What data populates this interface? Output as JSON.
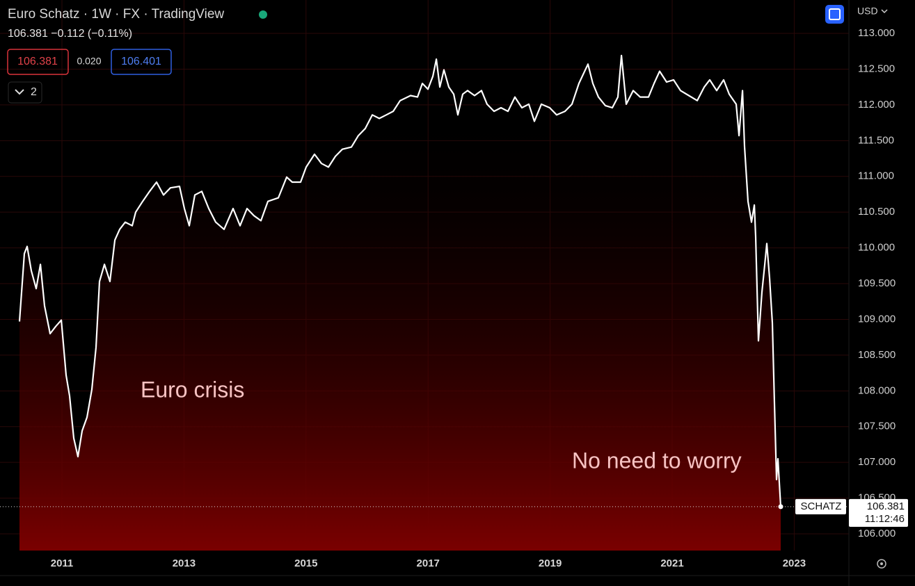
{
  "chart_data": {
    "type": "line",
    "title": "Euro Schatz · 1W · FX · TradingView",
    "subtitle": "106.381 −0.112 (−0.11%)",
    "header": {
      "bid": "106.381",
      "spread": "0.020",
      "ask": "106.401",
      "indicators": "2",
      "currency": "USD"
    },
    "annotations": [
      "Euro crisis",
      "No need to worry"
    ],
    "symbol_label": "SCHATZ",
    "countdown": "11:12:46",
    "x": [
      2010.304,
      2010.384,
      2010.43,
      2010.498,
      2010.578,
      2010.647,
      2010.715,
      2010.806,
      2010.897,
      2010.989,
      2011.068,
      2011.125,
      2011.194,
      2011.262,
      2011.331,
      2011.41,
      2011.49,
      2011.559,
      2011.616,
      2011.696,
      2011.787,
      2011.867,
      2011.946,
      2012.038,
      2012.152,
      2012.209,
      2012.323,
      2012.437,
      2012.551,
      2012.665,
      2012.779,
      2012.927,
      2013.007,
      2013.087,
      2013.178,
      2013.292,
      2013.406,
      2013.52,
      2013.657,
      2013.805,
      2013.919,
      2014.033,
      2014.147,
      2014.261,
      2014.375,
      2014.546,
      2014.683,
      2014.774,
      2014.911,
      2015.002,
      2015.139,
      2015.253,
      2015.367,
      2015.481,
      2015.595,
      2015.743,
      2015.857,
      2015.971,
      2016.086,
      2016.2,
      2016.314,
      2016.428,
      2016.542,
      2016.713,
      2016.827,
      2016.906,
      2016.998,
      2017.078,
      2017.135,
      2017.192,
      2017.26,
      2017.34,
      2017.42,
      2017.488,
      2017.568,
      2017.648,
      2017.762,
      2017.876,
      2017.967,
      2018.081,
      2018.195,
      2018.309,
      2018.423,
      2018.537,
      2018.651,
      2018.742,
      2018.856,
      2018.993,
      2019.107,
      2019.244,
      2019.358,
      2019.472,
      2019.62,
      2019.7,
      2019.791,
      2019.905,
      2020.019,
      2020.11,
      2020.168,
      2020.247,
      2020.361,
      2020.475,
      2020.612,
      2020.703,
      2020.795,
      2020.909,
      2021.023,
      2021.137,
      2021.274,
      2021.41,
      2021.525,
      2021.616,
      2021.73,
      2021.844,
      2021.935,
      2022.049,
      2022.095,
      2022.152,
      2022.186,
      2022.243,
      2022.3,
      2022.346,
      2022.368,
      2022.414,
      2022.471,
      2022.517,
      2022.551,
      2022.596,
      2022.642,
      2022.676,
      2022.71,
      2022.733,
      2022.779
    ],
    "series": [
      {
        "name": "Euro Schatz",
        "color": "#ffffff",
        "values": [
          108.97,
          109.92,
          110.02,
          109.68,
          109.43,
          109.77,
          109.19,
          108.8,
          108.9,
          108.99,
          108.22,
          107.93,
          107.34,
          107.08,
          107.44,
          107.63,
          108.02,
          108.61,
          109.53,
          109.77,
          109.53,
          110.11,
          110.26,
          110.36,
          110.31,
          110.5,
          110.65,
          110.79,
          110.92,
          110.74,
          110.84,
          110.86,
          110.55,
          110.31,
          110.74,
          110.79,
          110.55,
          110.36,
          110.26,
          110.55,
          110.31,
          110.55,
          110.45,
          110.38,
          110.65,
          110.7,
          110.99,
          110.92,
          110.92,
          111.13,
          111.31,
          111.18,
          111.13,
          111.28,
          111.38,
          111.41,
          111.57,
          111.67,
          111.86,
          111.81,
          111.86,
          111.91,
          112.06,
          112.13,
          112.11,
          112.3,
          112.22,
          112.4,
          112.64,
          112.25,
          112.49,
          112.25,
          112.15,
          111.86,
          112.15,
          112.2,
          112.13,
          112.2,
          112.01,
          111.91,
          111.96,
          111.91,
          112.11,
          111.96,
          112.01,
          111.77,
          112.01,
          111.96,
          111.86,
          111.91,
          112.01,
          112.3,
          112.57,
          112.3,
          112.11,
          111.99,
          111.96,
          112.11,
          112.69,
          112.01,
          112.2,
          112.11,
          112.11,
          112.3,
          112.47,
          112.32,
          112.35,
          112.2,
          112.13,
          112.06,
          112.25,
          112.35,
          112.2,
          112.35,
          112.15,
          112.01,
          111.57,
          112.2,
          111.42,
          110.65,
          110.36,
          110.6,
          110.16,
          108.7,
          109.38,
          109.77,
          110.06,
          109.58,
          108.95,
          107.83,
          106.76,
          107.05,
          106.381
        ]
      }
    ],
    "area_color": "#7a0000",
    "xlim": [
      2009.985,
      2023.896
    ],
    "xticks": [
      2011,
      2013,
      2015,
      2017,
      2019,
      2021,
      2023
    ],
    "ylim": [
      105.767,
      113.467
    ],
    "yticks": [
      {
        "value": 106,
        "label": "106.000"
      },
      {
        "value": 106.5,
        "label": "106.500"
      },
      {
        "value": 107,
        "label": "107.000"
      },
      {
        "value": 107.5,
        "label": "107.500"
      },
      {
        "value": 108,
        "label": "108.000"
      },
      {
        "value": 108.5,
        "label": "108.500"
      },
      {
        "value": 109,
        "label": "109.000"
      },
      {
        "value": 109.5,
        "label": "109.500"
      },
      {
        "value": 110,
        "label": "110.000"
      },
      {
        "value": 110.5,
        "label": "110.500"
      },
      {
        "value": 111,
        "label": "111.000"
      },
      {
        "value": 111.5,
        "label": "111.500"
      },
      {
        "value": 112,
        "label": "112.000"
      },
      {
        "value": 112.5,
        "label": "112.500"
      },
      {
        "value": 113,
        "label": "113.000"
      }
    ],
    "grid": true
  }
}
